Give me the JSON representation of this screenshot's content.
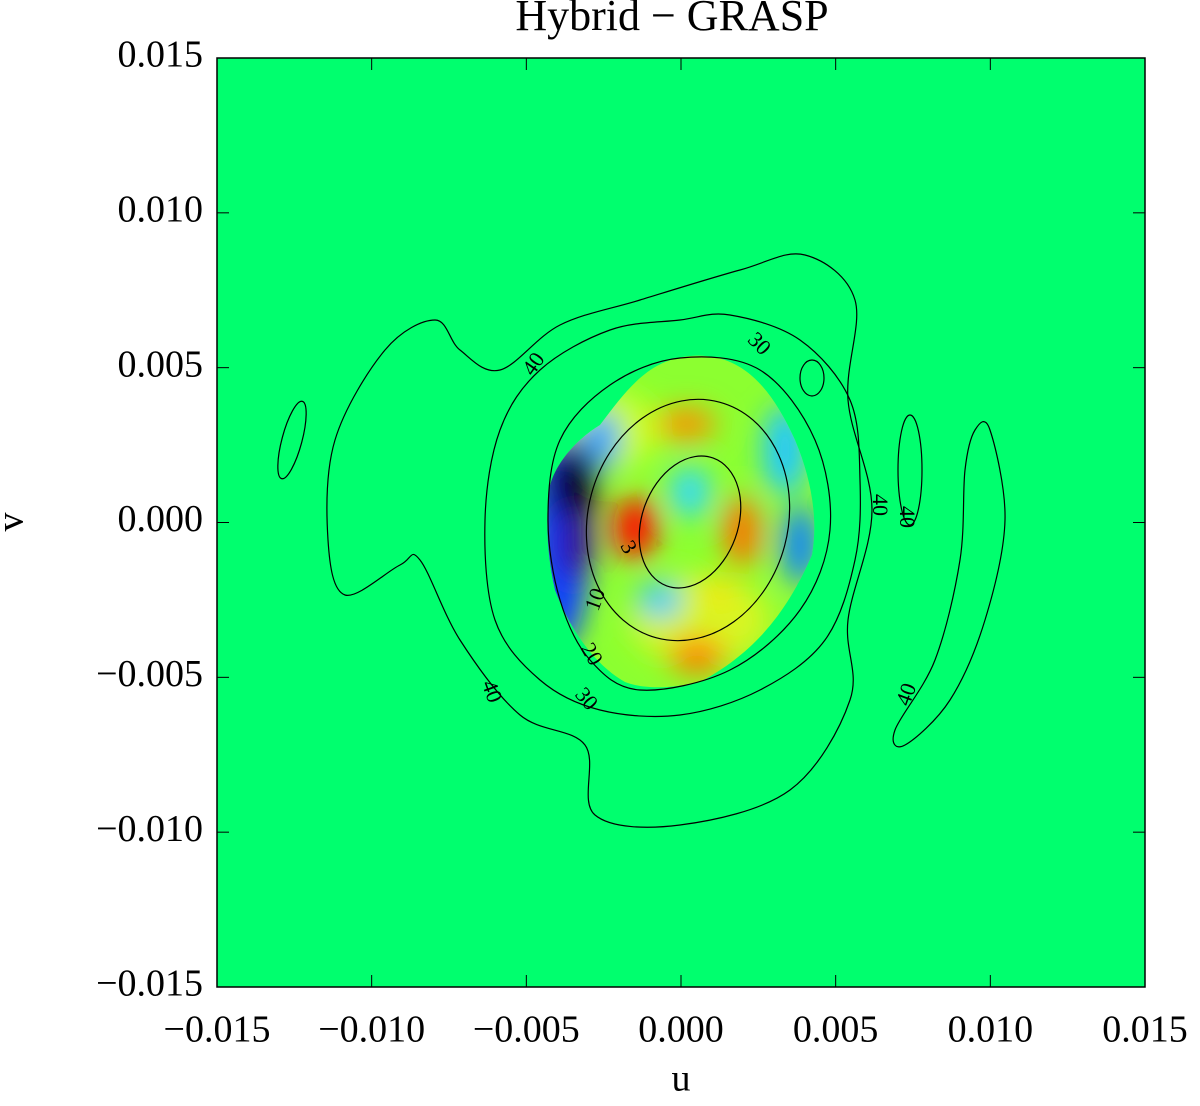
{
  "chart_data": {
    "type": "contour",
    "title": "Hybrid − GRASP",
    "xlabel": "u",
    "ylabel": "v",
    "xlim": [
      -0.015,
      0.015
    ],
    "ylim": [
      -0.015,
      0.015
    ],
    "xticks": [
      {
        "value": -0.015,
        "label": "−0.015"
      },
      {
        "value": -0.01,
        "label": "−0.010"
      },
      {
        "value": -0.005,
        "label": "−0.005"
      },
      {
        "value": 0,
        "label": "0.000"
      },
      0.005,
      {
        "value": 0.01,
        "label": "0.010"
      },
      0.015
    ],
    "yticks": [
      {
        "value": -0.015,
        "label": "−0.015"
      },
      {
        "value": -0.01,
        "label": "−0.010"
      },
      {
        "value": -0.005,
        "label": "−0.005"
      },
      {
        "value": 0,
        "label": "0.000"
      },
      0.005,
      {
        "value": 0.01,
        "label": "0.010"
      },
      0.015
    ],
    "contour_levels": [
      3,
      10,
      20,
      30,
      40
    ]
  }
}
